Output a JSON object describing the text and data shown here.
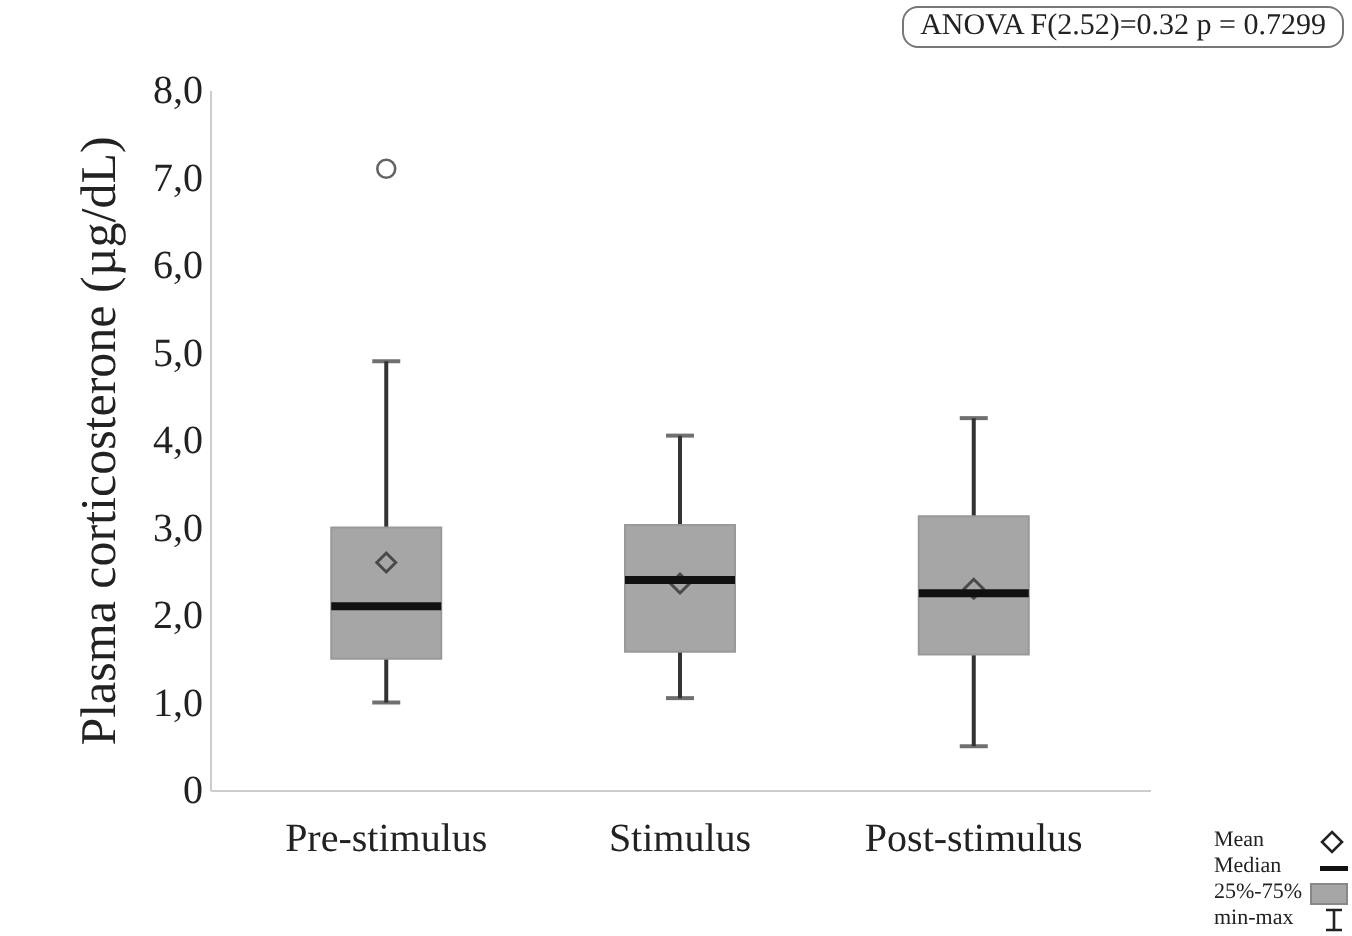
{
  "chart_data": {
    "type": "box",
    "ylabel": "Plasma corticosterone (µg/dL)",
    "categories": [
      "Pre-stimulus",
      "Stimulus",
      "Post-stimulus"
    ],
    "boxes": [
      {
        "low": 1.0,
        "q1": 1.5,
        "median": 2.1,
        "q3": 3.0,
        "high": 4.9,
        "mean": 2.6,
        "outliers": [
          7.1
        ]
      },
      {
        "low": 1.05,
        "q1": 1.58,
        "median": 2.4,
        "q3": 3.03,
        "high": 4.05,
        "mean": 2.36
      },
      {
        "low": 0.5,
        "q1": 1.55,
        "median": 2.25,
        "q3": 3.13,
        "high": 4.25,
        "mean": 2.3
      }
    ],
    "color": "#a6a6a6",
    "ylim": [
      0,
      8
    ],
    "yticks": [
      {
        "value": 0,
        "label": "0"
      },
      {
        "value": 1,
        "label": "1,0"
      },
      {
        "value": 2,
        "label": "2,0"
      },
      {
        "value": 3,
        "label": "3,0"
      },
      {
        "value": 4,
        "label": "4,0"
      },
      {
        "value": 5,
        "label": "5,0"
      },
      {
        "value": 6,
        "label": "6,0"
      },
      {
        "value": 7,
        "label": "7,0"
      },
      {
        "value": 8,
        "label": "8,0"
      }
    ],
    "grid": false,
    "annotations": [
      "ANOVA F(2.52)=0.32 p = 0.7299",
      "Mean",
      "Median",
      "25%-75%",
      "min-max"
    ]
  }
}
